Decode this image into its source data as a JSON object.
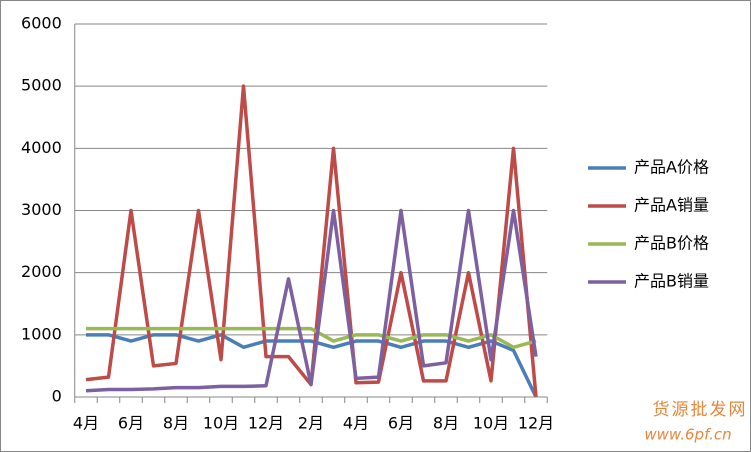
{
  "chart_data": {
    "type": "line",
    "categories": [
      "4月",
      null,
      "6月",
      null,
      "8月",
      null,
      "10月",
      null,
      "12月",
      null,
      "2月",
      null,
      "4月",
      null,
      "6月",
      null,
      "8月",
      null,
      "10月",
      null,
      "12月"
    ],
    "series": [
      {
        "name": "产品A价格",
        "color": "#4a7ebb",
        "values": [
          1000,
          1000,
          900,
          1000,
          1000,
          900,
          1000,
          800,
          900,
          900,
          900,
          800,
          900,
          900,
          800,
          900,
          900,
          800,
          900,
          750,
          0
        ]
      },
      {
        "name": "产品A销量",
        "color": "#be4b48",
        "values": [
          280,
          320,
          3000,
          500,
          540,
          3000,
          600,
          5000,
          650,
          650,
          200,
          4000,
          230,
          240,
          2000,
          260,
          260,
          2000,
          260,
          4000,
          0
        ]
      },
      {
        "name": "产品B价格",
        "color": "#98b954",
        "values": [
          1100,
          1100,
          1100,
          1100,
          1100,
          1100,
          1100,
          1100,
          1100,
          1100,
          1100,
          900,
          1000,
          1000,
          900,
          1000,
          1000,
          900,
          1000,
          800,
          900
        ]
      },
      {
        "name": "产品B销量",
        "color": "#7d60a0",
        "values": [
          100,
          120,
          120,
          130,
          150,
          150,
          170,
          170,
          180,
          1900,
          200,
          3000,
          300,
          320,
          3000,
          500,
          550,
          3000,
          600,
          3000,
          650
        ]
      }
    ],
    "ylim": [
      0,
      6000
    ],
    "yticks": [
      0,
      1000,
      2000,
      3000,
      4000,
      5000,
      6000
    ],
    "grid": true,
    "legend": "right",
    "annotations": [
      "货源批发网",
      "www.6pf.cn"
    ]
  }
}
